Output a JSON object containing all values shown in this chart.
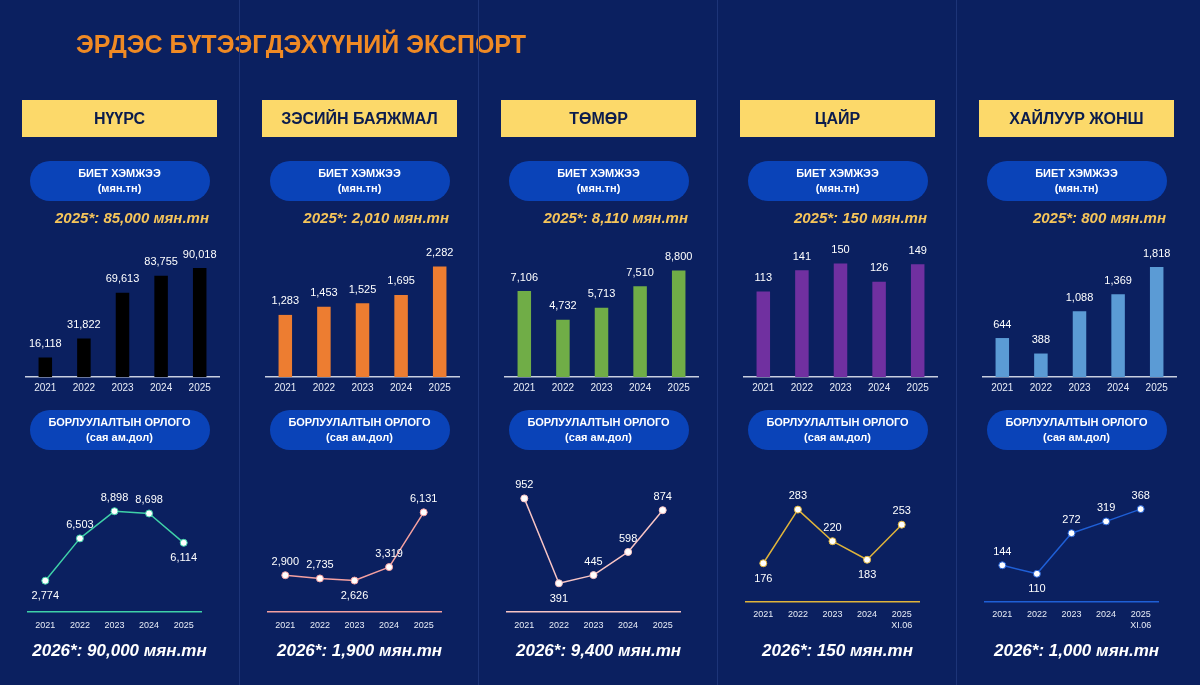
{
  "chart_data": [
    {
      "type": "other",
      "title": "ЭРДЭС БҮТЭЭГДЭХҮҮНИЙ ЭКСПОРТ"
    },
    {
      "type": "bar",
      "title": "НҮҮРС",
      "subtitle": "БИЕТ ХЭМЖЭЭ",
      "ylabel": "(мян.тн)",
      "annotations": [
        "2025*: 85,000 мян.тн"
      ],
      "categories": [
        "2021",
        "2022",
        "2023",
        "2024",
        "2025"
      ],
      "values": [
        16118,
        31822,
        69613,
        83755,
        90018
      ],
      "value_labels": [
        "16,118",
        "31,822",
        "69,613",
        "83,755",
        "90,018"
      ],
      "color": "#000000",
      "tick_labels": "x"
    },
    {
      "type": "line",
      "title": "БОРЛУУЛАЛТЫН ОРЛОГО",
      "ylabel": "(сая ам.дол)",
      "annotations": [
        "2026*: 90,000 мян.тн"
      ],
      "categories": [
        "2021",
        "2022",
        "2023",
        "2024",
        "2025"
      ],
      "values": [
        2774,
        6503,
        8898,
        8698,
        6114
      ],
      "value_labels": [
        "2,774",
        "6,503",
        "8,898",
        "8,698",
        "6,114"
      ],
      "color": "#3fd1a8",
      "marker": "circle",
      "tick_labels": "x"
    },
    {
      "type": "bar",
      "title": "ЗЭСИЙН БАЯЖМАЛ",
      "subtitle": "БИЕТ ХЭМЖЭЭ",
      "ylabel": "(мян.тн)",
      "annotations": [
        "2025*: 2,010 мян.тн"
      ],
      "categories": [
        "2021",
        "2022",
        "2023",
        "2024",
        "2025"
      ],
      "values": [
        1283,
        1453,
        1525,
        1695,
        2282
      ],
      "value_labels": [
        "1,283",
        "1,453",
        "1,525",
        "1,695",
        "2,282"
      ],
      "color": "#ed7d31",
      "tick_labels": "x"
    },
    {
      "type": "line",
      "title": "БОРЛУУЛАЛТЫН ОРЛОГО",
      "ylabel": "(сая ам.дол)",
      "annotations": [
        "2026*: 1,900 мян.тн"
      ],
      "categories": [
        "2021",
        "2022",
        "2023",
        "2024",
        "2025"
      ],
      "values": [
        2900,
        2735,
        2626,
        3319,
        6131
      ],
      "value_labels": [
        "2,900",
        "2,735",
        "2,626",
        "3,319",
        "6,131"
      ],
      "color": "#f4a0a0",
      "marker": "circle",
      "tick_labels": "x"
    },
    {
      "type": "bar",
      "title": "ТӨМӨР",
      "subtitle": "БИЕТ ХЭМЖЭЭ",
      "ylabel": "(мян.тн)",
      "annotations": [
        "2025*: 8,110 мян.тн"
      ],
      "categories": [
        "2021",
        "2022",
        "2023",
        "2024",
        "2025"
      ],
      "values": [
        7106,
        4732,
        5713,
        7510,
        8800
      ],
      "value_labels": [
        "7,106",
        "4,732",
        "5,713",
        "7,510",
        "8,800"
      ],
      "color": "#70ad47",
      "tick_labels": "x"
    },
    {
      "type": "line",
      "title": "БОРЛУУЛАЛТЫН ОРЛОГО",
      "ylabel": "(сая ам.дол)",
      "annotations": [
        "2026*: 9,400 мян.тн"
      ],
      "categories": [
        "2021",
        "2022",
        "2023",
        "2024",
        "2025"
      ],
      "values": [
        952,
        391,
        445,
        598,
        874
      ],
      "value_labels": [
        "952",
        "391",
        "445",
        "598",
        "874"
      ],
      "color": "#f8c4c4",
      "marker": "circle",
      "tick_labels": "x"
    },
    {
      "type": "bar",
      "title": "ЦАЙР",
      "subtitle": "БИЕТ ХЭМЖЭЭ",
      "ylabel": "(мян.тн)",
      "annotations": [
        "2025*: 150 мян.тн"
      ],
      "categories": [
        "2021",
        "2022",
        "2023",
        "2024",
        "2025"
      ],
      "values": [
        113,
        141,
        150,
        126,
        149
      ],
      "value_labels": [
        "113",
        "141",
        "150",
        "126",
        "149"
      ],
      "color": "#7030a0",
      "tick_labels": "x"
    },
    {
      "type": "line",
      "title": "БОРЛУУЛАЛТЫН ОРЛОГО",
      "ylabel": "(сая ам.дол)",
      "annotations": [
        "2026*: 150 мян.тн"
      ],
      "categories": [
        "2021",
        "2022",
        "2023",
        "2024",
        "2025\nXI.06"
      ],
      "values": [
        176,
        283,
        220,
        183,
        253
      ],
      "value_labels": [
        "176",
        "283",
        "220",
        "183",
        "253"
      ],
      "color": "#e0b43a",
      "marker": "circle",
      "tick_labels": "x"
    },
    {
      "type": "bar",
      "title": "ХАЙЛУУР ЖОНШ",
      "subtitle": "БИЕТ ХЭМЖЭЭ",
      "ylabel": "(мян.тн)",
      "annotations": [
        "2025*: 800 мян.тн"
      ],
      "categories": [
        "2021",
        "2022",
        "2023",
        "2024",
        "2025"
      ],
      "values": [
        644,
        388,
        1088,
        1369,
        1818
      ],
      "value_labels": [
        "644",
        "388",
        "1,088",
        "1,369",
        "1,818"
      ],
      "color": "#5b9bd5",
      "tick_labels": "x"
    },
    {
      "type": "line",
      "title": "БОРЛУУЛАЛТЫН ОРЛОГО",
      "ylabel": "(сая ам.дол)",
      "annotations": [
        "2026*: 1,000 мян.тн"
      ],
      "categories": [
        "2021",
        "2022",
        "2023",
        "2024",
        "2025\nXI.06"
      ],
      "values": [
        144,
        110,
        272,
        319,
        368
      ],
      "value_labels": [
        "144",
        "110",
        "272",
        "319",
        "368"
      ],
      "color": "#1f5fd6",
      "marker": "circle",
      "tick_labels": "x"
    }
  ]
}
